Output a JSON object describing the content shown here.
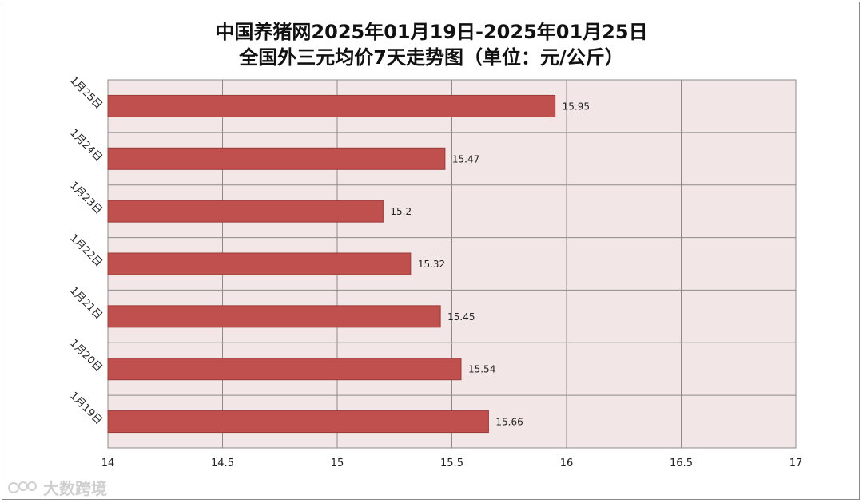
{
  "chart_data": {
    "type": "bar",
    "orientation": "horizontal",
    "title": "中国养猪网2025年01月19日-2025年01月25日",
    "subtitle": "全国外三元均价7天走势图（单位：元/公斤）",
    "categories": [
      "1月25日",
      "1月24日",
      "1月23日",
      "1月22日",
      "1月21日",
      "1月20日",
      "1月19日"
    ],
    "values": [
      15.95,
      15.47,
      15.2,
      15.32,
      15.45,
      15.54,
      15.66
    ],
    "data_labels": [
      "15.95",
      "15.47",
      "15.2",
      "15.32",
      "15.45",
      "15.54",
      "15.66"
    ],
    "x_ticks": [
      "14",
      "14.5",
      "15",
      "15.5",
      "16",
      "16.5",
      "17"
    ],
    "xlim": [
      14,
      17
    ],
    "grid": true,
    "bar_color": "#c0504d",
    "plot_background": "#f2e6e6"
  },
  "watermark": {
    "text": "大数跨境",
    "icon": "brand-logo-icon"
  }
}
